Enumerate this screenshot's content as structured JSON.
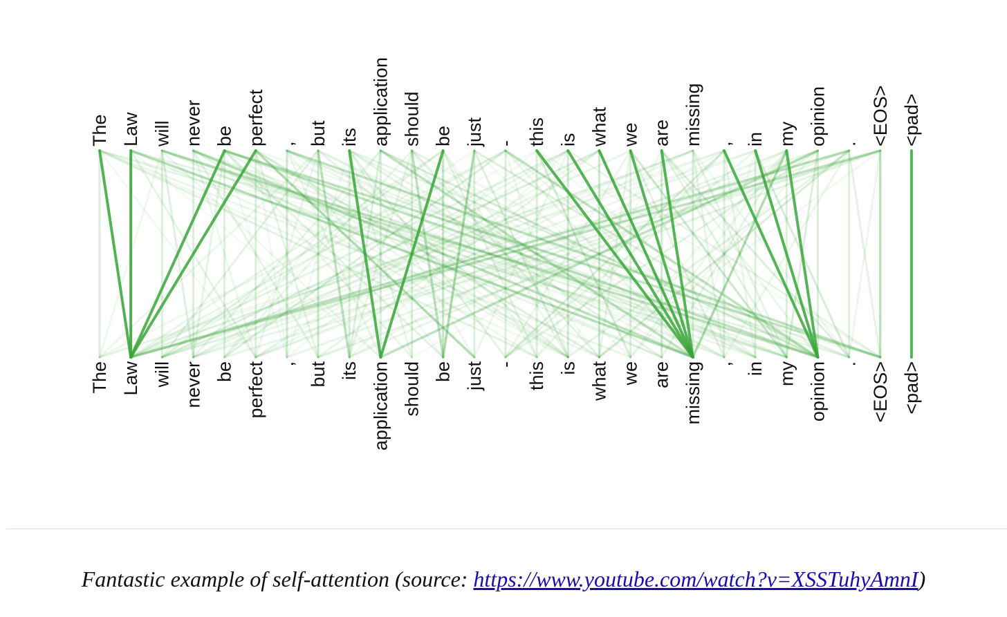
{
  "tokens": [
    "The",
    "Law",
    "will",
    "never",
    "be",
    "perfect",
    ",",
    "but",
    "its",
    "application",
    "should",
    "be",
    "just",
    "-",
    "this",
    "is",
    "what",
    "we",
    "are",
    "missing",
    ",",
    "in",
    "my",
    "opinion",
    ".",
    "<EOS>",
    "<pad>"
  ],
  "line_color": "#3aa63a",
  "strong_links": [
    [
      0,
      1
    ],
    [
      1,
      1
    ],
    [
      4,
      1
    ],
    [
      5,
      1
    ],
    [
      8,
      9
    ],
    [
      11,
      9
    ],
    [
      14,
      19
    ],
    [
      15,
      19
    ],
    [
      16,
      19
    ],
    [
      17,
      19
    ],
    [
      18,
      19
    ],
    [
      20,
      23
    ],
    [
      21,
      23
    ],
    [
      22,
      23
    ],
    [
      26,
      26
    ]
  ],
  "medium_links": [
    [
      4,
      23
    ],
    [
      5,
      12
    ],
    [
      4,
      25
    ],
    [
      25,
      1
    ],
    [
      24,
      1
    ],
    [
      23,
      9
    ],
    [
      22,
      19
    ],
    [
      10,
      11
    ],
    [
      12,
      11
    ],
    [
      7,
      8
    ],
    [
      3,
      19
    ],
    [
      2,
      23
    ],
    [
      6,
      25
    ],
    [
      9,
      19
    ],
    [
      13,
      23
    ],
    [
      1,
      19
    ]
  ],
  "caption": {
    "text": "Fantastic example of self-attention (source: ",
    "link": "https://www.youtube.com/watch?v=XSSTuhyAmnI",
    "close": ")"
  }
}
